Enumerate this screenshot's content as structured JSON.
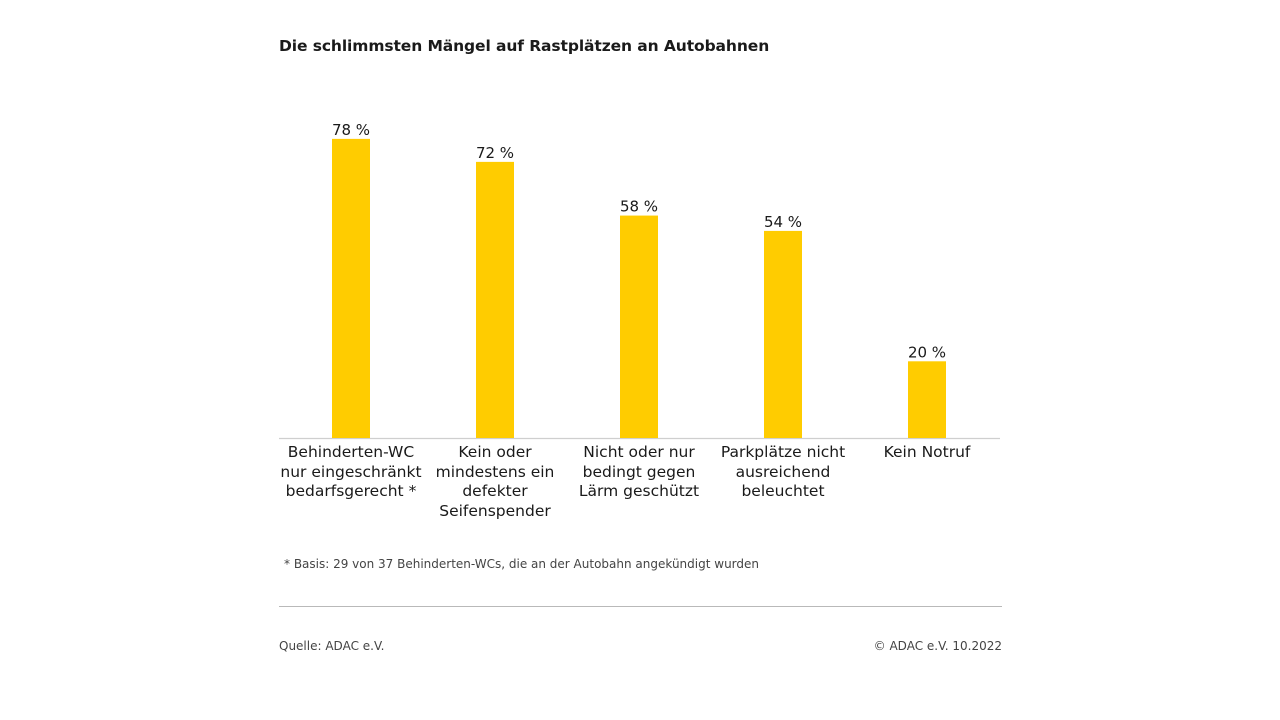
{
  "colors": {
    "bar": "#FFCC00",
    "baseline": "#cfcfcf",
    "text": "#1a1a1a"
  },
  "chart_data": {
    "type": "bar",
    "title": "Die schlimmsten Mängel auf Rastplätzen an Autobahnen",
    "categories": [
      "Behinderten-WC nur eingeschränkt bedarfsgerecht *",
      "Kein oder mindestens ein defekter Seifenspender",
      "Nicht oder nur bedingt gegen Lärm geschützt",
      "Parkplätze nicht ausreichend beleuchtet",
      "Kein Notruf"
    ],
    "values": [
      78,
      72,
      58,
      54,
      20
    ],
    "value_labels": [
      "78 %",
      "72 %",
      "58 %",
      "54 %",
      "20 %"
    ],
    "unit": "%",
    "xlabel": "",
    "ylabel": "",
    "ylim": [
      0,
      100
    ],
    "grid": false,
    "legend": "none"
  },
  "footer": {
    "footnote": "* Basis: 29 von 37 Behinderten-WCs, die an der Autobahn angekündigt wurden",
    "source": "Quelle: ADAC e.V.",
    "copyright": "© ADAC e.V. 10.2022"
  }
}
